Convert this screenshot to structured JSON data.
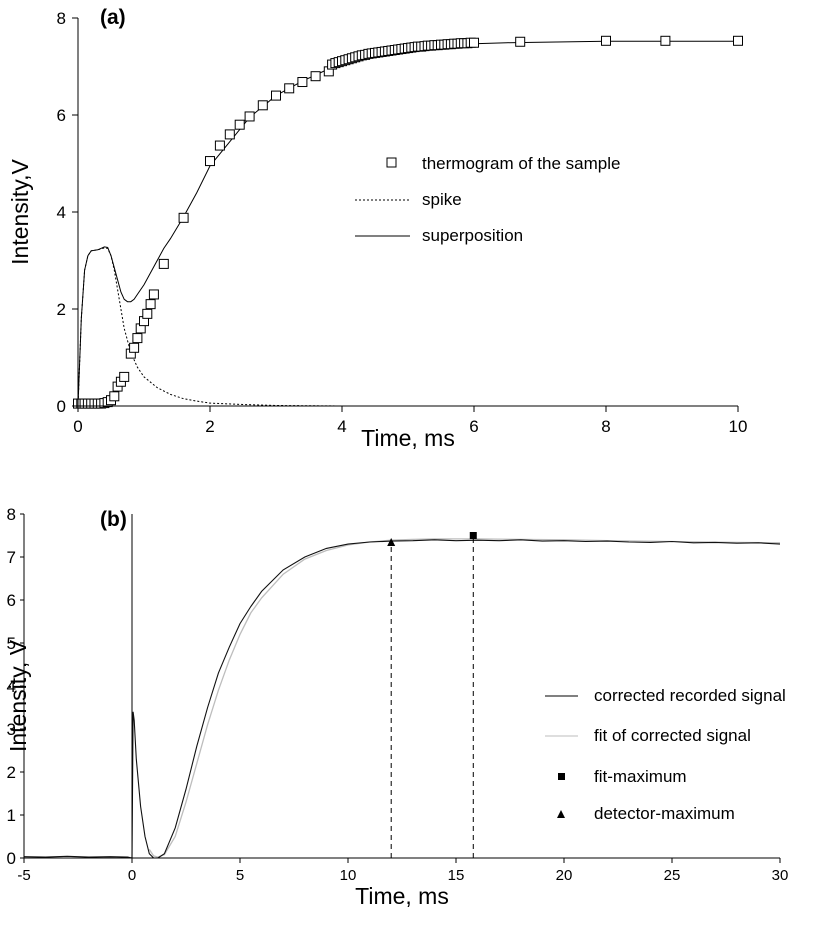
{
  "chart_data": [
    {
      "type": "line",
      "panel_label": "(a)",
      "xlabel": "Time, ms",
      "ylabel": "Intensity,V",
      "xlim": [
        0,
        10
      ],
      "ylim": [
        0,
        8
      ],
      "xticks": [
        "0",
        "2",
        "4",
        "6",
        "8",
        "10"
      ],
      "yticks": [
        "0",
        "2",
        "4",
        "6",
        "8"
      ],
      "legend_position": "center-right",
      "series": [
        {
          "name": "thermogram of  the sample",
          "style": "open-square-markers",
          "x": [
            0.0,
            0.05,
            0.1,
            0.15,
            0.2,
            0.25,
            0.3,
            0.35,
            0.4,
            0.45,
            0.5,
            0.55,
            0.6,
            0.65,
            0.7,
            0.8,
            0.85,
            0.9,
            0.95,
            1.0,
            1.05,
            1.1,
            1.15,
            1.3,
            1.6,
            2.0,
            2.15,
            2.3,
            2.45,
            2.6,
            2.8,
            3.0,
            3.2,
            3.4,
            3.6,
            3.8,
            3.85,
            3.9,
            3.95,
            4.0,
            4.05,
            4.1,
            4.15,
            4.2,
            4.25,
            4.3,
            4.35,
            4.4,
            4.45,
            4.5,
            4.55,
            4.6,
            4.65,
            4.7,
            4.75,
            4.8,
            4.85,
            4.9,
            4.95,
            5.0,
            5.05,
            5.1,
            5.15,
            5.2,
            5.25,
            5.3,
            5.35,
            5.4,
            5.45,
            5.5,
            5.55,
            5.6,
            5.65,
            5.7,
            5.75,
            5.8,
            5.85,
            5.9,
            5.95,
            6.0,
            6.7,
            8.0,
            8.9,
            10.0
          ],
          "y": [
            0.05,
            0.05,
            0.05,
            0.05,
            0.05,
            0.05,
            0.05,
            0.05,
            0.06,
            0.08,
            0.12,
            0.2,
            0.4,
            0.5,
            0.6,
            1.08,
            1.2,
            1.4,
            1.6,
            1.75,
            1.9,
            2.1,
            2.3,
            2.93,
            3.88,
            5.05,
            5.37,
            5.6,
            5.8,
            5.97,
            6.2,
            6.4,
            6.55,
            6.68,
            6.8,
            6.9,
            7.04,
            7.07,
            7.09,
            7.11,
            7.13,
            7.15,
            7.17,
            7.19,
            7.21,
            7.23,
            7.24,
            7.26,
            7.27,
            7.28,
            7.29,
            7.3,
            7.31,
            7.32,
            7.33,
            7.34,
            7.35,
            7.36,
            7.37,
            7.38,
            7.39,
            7.4,
            7.41,
            7.41,
            7.42,
            7.43,
            7.43,
            7.44,
            7.44,
            7.45,
            7.45,
            7.46,
            7.46,
            7.47,
            7.47,
            7.48,
            7.48,
            7.48,
            7.49,
            7.49,
            7.51,
            7.53,
            7.53,
            7.53
          ]
        },
        {
          "name": "spike",
          "style": "dotted-line",
          "x": [
            0.0,
            0.05,
            0.1,
            0.15,
            0.2,
            0.3,
            0.4,
            0.45,
            0.5,
            0.55,
            0.6,
            0.7,
            0.8,
            0.9,
            1.0,
            1.2,
            1.4,
            1.6,
            1.8,
            2.0,
            2.5,
            3.0,
            4.0
          ],
          "y": [
            0.0,
            1.8,
            2.8,
            3.1,
            3.2,
            3.22,
            3.26,
            3.25,
            3.1,
            2.8,
            2.4,
            1.6,
            1.1,
            0.8,
            0.6,
            0.38,
            0.24,
            0.15,
            0.1,
            0.06,
            0.03,
            0.01,
            0.0
          ]
        },
        {
          "name": "superposition",
          "style": "solid-line",
          "x": [
            0.0,
            0.05,
            0.1,
            0.15,
            0.2,
            0.3,
            0.4,
            0.45,
            0.5,
            0.55,
            0.6,
            0.65,
            0.7,
            0.75,
            0.8,
            0.85,
            0.9,
            1.0,
            1.1,
            1.2,
            1.3,
            1.4,
            1.6,
            1.8,
            2.0,
            2.3,
            2.6,
            3.0,
            3.4,
            3.8,
            4.2,
            4.6,
            5.0,
            5.5,
            6.0,
            6.5,
            7.0,
            8.0,
            9.0,
            10.0
          ],
          "y": [
            0.0,
            1.8,
            2.8,
            3.1,
            3.2,
            3.22,
            3.28,
            3.27,
            3.1,
            2.85,
            2.6,
            2.35,
            2.2,
            2.15,
            2.15,
            2.2,
            2.3,
            2.5,
            2.75,
            3.0,
            3.25,
            3.45,
            3.9,
            4.4,
            4.95,
            5.45,
            5.95,
            6.4,
            6.7,
            6.95,
            7.12,
            7.25,
            7.35,
            7.42,
            7.47,
            7.49,
            7.5,
            7.52,
            7.52,
            7.52
          ]
        }
      ]
    },
    {
      "type": "line",
      "panel_label": "(b)",
      "xlabel": "Time, ms",
      "ylabel": "Intensity, V",
      "xlim": [
        -5,
        30
      ],
      "ylim": [
        0,
        8
      ],
      "xticks": [
        "-5",
        "0",
        "5",
        "10",
        "15",
        "20",
        "25",
        "30"
      ],
      "yticks": [
        "0",
        "1",
        "2",
        "3",
        "4",
        "5",
        "6",
        "7",
        "8"
      ],
      "legend_position": "center-right",
      "series": [
        {
          "name": "corrected recorded signal",
          "style": "solid-dark",
          "x": [
            -5.0,
            -4.0,
            -3.0,
            -2.0,
            -1.0,
            -0.2,
            0.0,
            0.05,
            0.1,
            0.2,
            0.4,
            0.6,
            0.8,
            1.0,
            1.2,
            1.5,
            2.0,
            2.5,
            3.0,
            3.5,
            4.0,
            4.5,
            5.0,
            5.5,
            6.0,
            7.0,
            8.0,
            9.0,
            10.0,
            11.0,
            12.0,
            13.0,
            14.0,
            15.0,
            16.0,
            17.0,
            18.0,
            19.0,
            20.0,
            21.0,
            22.0,
            23.0,
            24.0,
            25.0,
            26.0,
            27.0,
            28.0,
            29.0,
            30.0
          ],
          "y": [
            0.03,
            0.02,
            0.04,
            0.02,
            0.03,
            0.02,
            0.0,
            3.4,
            3.2,
            2.3,
            1.2,
            0.5,
            0.1,
            0.0,
            0.0,
            0.1,
            0.7,
            1.6,
            2.6,
            3.5,
            4.3,
            4.9,
            5.45,
            5.85,
            6.2,
            6.7,
            7.0,
            7.2,
            7.3,
            7.35,
            7.37,
            7.38,
            7.4,
            7.38,
            7.39,
            7.38,
            7.4,
            7.37,
            7.38,
            7.36,
            7.37,
            7.35,
            7.34,
            7.36,
            7.33,
            7.34,
            7.32,
            7.33,
            7.3
          ]
        },
        {
          "name": "fit of corrected signal",
          "style": "solid-light",
          "x": [
            0.8,
            1.0,
            1.2,
            1.5,
            2.0,
            2.5,
            3.0,
            3.5,
            4.0,
            4.5,
            5.0,
            5.5,
            6.0,
            7.0,
            8.0,
            9.0,
            10.0,
            11.0,
            12.0,
            13.0,
            14.0,
            15.0,
            16.0,
            18.0,
            20.0,
            22.0,
            25.0,
            28.0,
            30.0
          ],
          "y": [
            0.2,
            0.05,
            0.02,
            0.08,
            0.5,
            1.3,
            2.2,
            3.1,
            3.9,
            4.6,
            5.2,
            5.7,
            6.05,
            6.6,
            6.95,
            7.15,
            7.28,
            7.35,
            7.39,
            7.41,
            7.42,
            7.42,
            7.42,
            7.41,
            7.4,
            7.38,
            7.36,
            7.34,
            7.33
          ]
        }
      ],
      "markers": [
        {
          "name": "fit-maximum",
          "shape": "filled-square",
          "x": 15.8,
          "y": 7.5
        },
        {
          "name": "detector-maximum",
          "shape": "filled-triangle",
          "x": 12.0,
          "y": 7.35
        }
      ]
    }
  ]
}
